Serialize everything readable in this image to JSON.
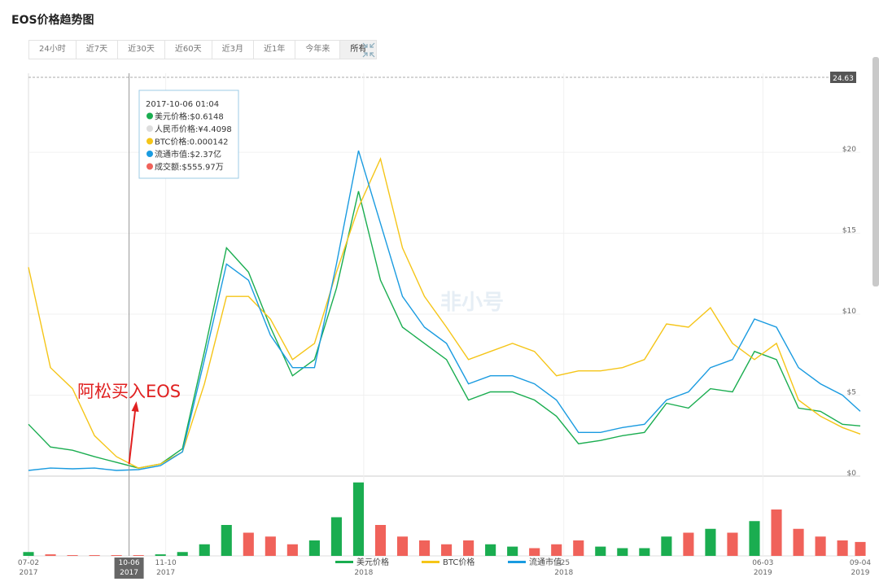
{
  "header": {
    "title": "EOS价格趋势图",
    "range_buttons": [
      "24小时",
      "近7天",
      "近30天",
      "近60天",
      "近3月",
      "近1年",
      "今年来",
      "所有"
    ],
    "active_range": 7
  },
  "chart_data": {
    "type": "line",
    "x": [
      "2017-07-02",
      "2017-07-23",
      "2017-08-13",
      "2017-09-03",
      "2017-09-24",
      "2017-10-15",
      "2017-11-05",
      "2017-11-26",
      "2017-12-17",
      "2018-01-07",
      "2018-01-28",
      "2018-02-18",
      "2018-03-11",
      "2018-04-01",
      "2018-04-22",
      "2018-05-13",
      "2018-06-03",
      "2018-06-24",
      "2018-07-15",
      "2018-08-05",
      "2018-08-26",
      "2018-09-16",
      "2018-10-07",
      "2018-10-28",
      "2018-11-18",
      "2018-12-09",
      "2018-12-30",
      "2019-01-20",
      "2019-02-10",
      "2019-03-03",
      "2019-03-24",
      "2019-04-14",
      "2019-05-05",
      "2019-05-26",
      "2019-06-16",
      "2019-07-07",
      "2019-07-28",
      "2019-08-18",
      "2019-09-04"
    ],
    "series": [
      {
        "name": "美元价格",
        "color": "#1aad50",
        "values": [
          3.2,
          1.8,
          1.6,
          1.2,
          0.85,
          0.5,
          0.75,
          1.7,
          7.7,
          14.1,
          12.6,
          9.2,
          6.2,
          7.2,
          11.6,
          17.6,
          12.1,
          9.2,
          8.2,
          7.2,
          4.7,
          5.2,
          5.2,
          4.7,
          3.7,
          2.0,
          2.2,
          2.5,
          2.7,
          4.5,
          4.2,
          5.4,
          5.2,
          7.7,
          7.2,
          4.2,
          4.0,
          3.2,
          3.1
        ]
      },
      {
        "name": "BTC价格",
        "color": "#f5c518",
        "values": [
          12.9,
          6.7,
          5.4,
          2.5,
          1.2,
          0.5,
          0.75,
          1.5,
          5.7,
          11.1,
          11.1,
          9.7,
          7.2,
          8.2,
          12.6,
          16.6,
          19.6,
          14.1,
          11.1,
          9.2,
          7.2,
          7.7,
          8.2,
          7.7,
          6.2,
          6.5,
          6.5,
          6.7,
          7.2,
          9.4,
          9.2,
          10.4,
          8.2,
          7.2,
          8.2,
          4.7,
          3.7,
          3.0,
          2.6
        ]
      },
      {
        "name": "流通市值",
        "color": "#1a9be0",
        "values": [
          0.35,
          0.5,
          0.45,
          0.5,
          0.35,
          0.4,
          0.65,
          1.5,
          7.2,
          13.1,
          12.1,
          8.7,
          6.7,
          6.7,
          13.1,
          20.1,
          15.6,
          11.1,
          9.2,
          8.2,
          5.7,
          6.2,
          6.2,
          5.7,
          4.7,
          2.7,
          2.7,
          3.0,
          3.2,
          4.7,
          5.2,
          6.7,
          7.2,
          9.7,
          9.2,
          6.7,
          5.7,
          5.0,
          4.0
        ]
      }
    ],
    "volume": {
      "name": "成交额",
      "up_color": "#1aad50",
      "down_color": "#f0625a",
      "vlim": [
        0,
        100
      ],
      "values": [
        5,
        2,
        1,
        1,
        1,
        1,
        2,
        5,
        15,
        40,
        30,
        25,
        15,
        20,
        50,
        95,
        40,
        25,
        20,
        15,
        20,
        15,
        12,
        10,
        15,
        20,
        12,
        10,
        10,
        25,
        30,
        35,
        30,
        45,
        60,
        35,
        25,
        20,
        18
      ]
    },
    "ylim": [
      0,
      24.63
    ],
    "yticks": [
      {
        "value": 0,
        "label": "$0"
      },
      {
        "value": 5,
        "label": "$5"
      },
      {
        "value": 10,
        "label": "$10"
      },
      {
        "value": 15,
        "label": "$15"
      },
      {
        "value": 20,
        "label": "$20"
      }
    ],
    "xlim": [
      "2017-07-02",
      "2019-09-04"
    ],
    "xticks": [
      {
        "value": "2017-07-02",
        "label": "07-02",
        "year": "2017"
      },
      {
        "value": "2017-10-06",
        "label": "10-06",
        "year": "2017"
      },
      {
        "value": "2017-11-10",
        "label": "11-10",
        "year": "2017"
      },
      {
        "value": "2018-05-18",
        "year": "2018"
      },
      {
        "value": "2018-11-25",
        "label": "-25",
        "year": "2018"
      },
      {
        "value": "2019-06-03",
        "label": "06-03",
        "year": "2019"
      },
      {
        "value": "2019-09-04",
        "label": "09-04",
        "year": "2019"
      }
    ],
    "crosshair": "2017-10-06",
    "grid": true,
    "legend": "bottom",
    "tooltip": {
      "lines": [
        {
          "text": "2017-10-06 01:04"
        },
        {
          "text": "美元价格:$0.6148",
          "color": "#1aad50"
        },
        {
          "text": "人民币价格:¥4.4098",
          "color": "#dddddd"
        },
        {
          "text": "BTC价格:0.000142",
          "color": "#f5c518"
        },
        {
          "text": "流通市值:$2.37亿",
          "color": "#1a9be0"
        },
        {
          "text": "成交额:$555.97万",
          "color": "#f0625a"
        }
      ]
    },
    "annotation": {
      "text": "阿松买入EOS",
      "color": "#e02020",
      "date": "2017-10-06"
    },
    "watermark": "非小号"
  }
}
